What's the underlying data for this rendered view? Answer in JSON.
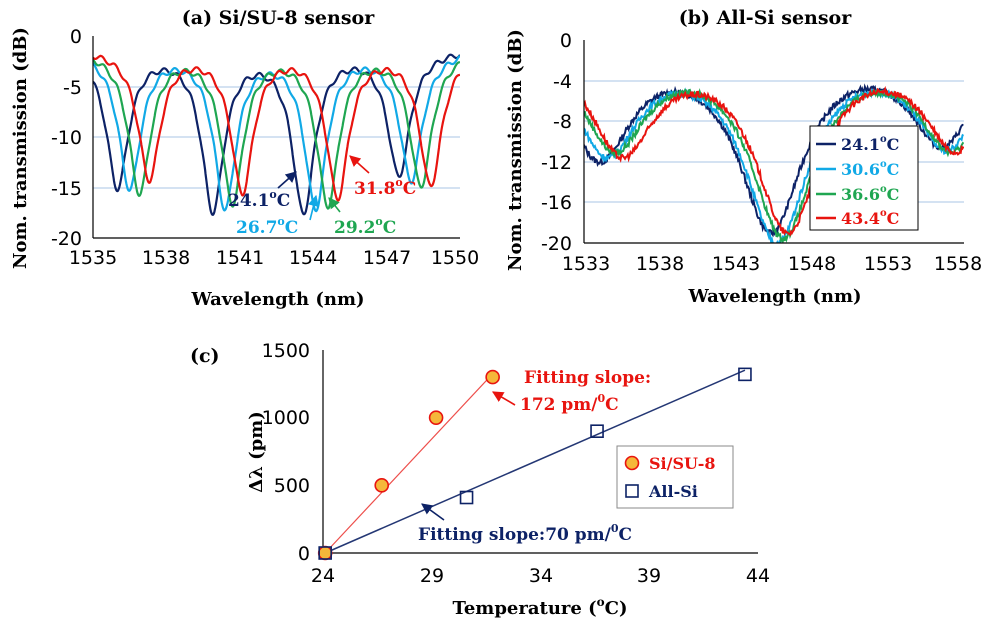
{
  "chart_data": [
    {
      "type": "line",
      "title": "(a) Si/SU-8 sensor",
      "xlabel": "Wavelength (nm)",
      "ylabel": "Nom. transmission (dB)",
      "xlim": [
        1535,
        1550
      ],
      "ylim": [
        -20,
        0
      ],
      "xticks": [
        "1535",
        "1538",
        "1541",
        "1544",
        "1547",
        "1550"
      ],
      "yticks": [
        "0",
        "-5",
        "-10",
        "-15",
        "-20"
      ],
      "grid": "horizontal",
      "series": [
        {
          "name": "24.1°C",
          "color": "#0d2266",
          "fsr": 7.6,
          "width": 0.55,
          "dips": [
            1536.0,
            1539.9,
            1543.6,
            1547.5
          ],
          "depths": [
            -14.7,
            -16.8,
            -17.0,
            -13.5
          ]
        },
        {
          "name": "26.7°C",
          "color": "#11a9e6",
          "fsr": 7.6,
          "width": 0.55,
          "dips": [
            1536.5,
            1540.4,
            1544.1,
            1548.0
          ],
          "depths": [
            -14.8,
            -16.5,
            -16.5,
            -14.0
          ]
        },
        {
          "name": "29.2°C",
          "color": "#1fa651",
          "fsr": 7.6,
          "width": 0.55,
          "dips": [
            1536.9,
            1540.7,
            1544.6,
            1548.4
          ],
          "depths": [
            -15.2,
            -16.0,
            -16.2,
            -14.5
          ]
        },
        {
          "name": "31.8°C",
          "color": "#e8140f",
          "fsr": 7.6,
          "width": 0.55,
          "dips": [
            1537.3,
            1541.1,
            1545.0,
            1548.8
          ],
          "depths": [
            -13.9,
            -15.0,
            -15.5,
            -14.5
          ]
        }
      ],
      "annotations": [
        {
          "text": "24.1",
          "sup": "o",
          "unit": "C",
          "color": "#0d2266"
        },
        {
          "text": "26.7",
          "sup": "o",
          "unit": "C",
          "color": "#11a9e6"
        },
        {
          "text": "29.2",
          "sup": "o",
          "unit": "C",
          "color": "#1fa651"
        },
        {
          "text": "31.8",
          "sup": "o",
          "unit": "C",
          "color": "#e8140f"
        }
      ]
    },
    {
      "type": "line",
      "title": "(b) All-Si sensor",
      "xlabel": "Wavelength (nm)",
      "ylabel": "Nom. transmission (dB)",
      "xlim": [
        1533,
        1558
      ],
      "ylim": [
        -20,
        0
      ],
      "xticks": [
        "1533",
        "1538",
        "1543",
        "1548",
        "1553",
        "1558"
      ],
      "yticks": [
        "0",
        "-4",
        "-8",
        "-12",
        "-16",
        "-20"
      ],
      "grid": "horizontal",
      "legend_position": "right",
      "series": [
        {
          "name": "24.1",
          "sup": "o",
          "unit": "C",
          "color": "#0d2266",
          "dips": [
            1534.0,
            1545.3,
            1556.6
          ],
          "depths": [
            -11.0,
            -18.0,
            -9.5
          ]
        },
        {
          "name": "30.6",
          "sup": "o",
          "unit": "C",
          "color": "#11a9e6",
          "dips": [
            1534.5,
            1545.7,
            1556.9
          ],
          "depths": [
            -10.5,
            -19.0,
            -9.8
          ]
        },
        {
          "name": "36.6",
          "sup": "o",
          "unit": "C",
          "color": "#1fa651",
          "dips": [
            1535.0,
            1546.1,
            1557.2
          ],
          "depths": [
            -10.0,
            -18.5,
            -10.0
          ]
        },
        {
          "name": "43.4",
          "sup": "o",
          "unit": "C",
          "color": "#e8140f",
          "dips": [
            1535.5,
            1546.4,
            1557.5
          ],
          "depths": [
            -10.5,
            -18.0,
            -10.0
          ]
        }
      ]
    },
    {
      "type": "scatter",
      "title": "(c)",
      "xlabel": "Temperature (",
      "xlabel_sup": "o",
      "xlabel_end": "C)",
      "ylabel": "Δλ (pm)",
      "xlim": [
        24,
        44
      ],
      "ylim": [
        0,
        1500
      ],
      "xticks": [
        "24",
        "29",
        "34",
        "39",
        "44"
      ],
      "yticks": [
        "0",
        "500",
        "1000",
        "1500"
      ],
      "legend_position": "right",
      "series": [
        {
          "name": "Si/SU-8",
          "marker": "circle",
          "color": "#e8140f",
          "fill": "#f5b73a",
          "x": [
            24.1,
            26.7,
            29.2,
            31.8
          ],
          "y": [
            0,
            500,
            1000,
            1300
          ],
          "fit": [
            [
              24.1,
              0
            ],
            [
              31.8,
              1324
            ]
          ]
        },
        {
          "name": "All-Si",
          "marker": "square",
          "color": "#0d2266",
          "fill": "#ffffff",
          "x": [
            24.1,
            30.6,
            36.6,
            43.4
          ],
          "y": [
            0,
            410,
            900,
            1320
          ],
          "fit": [
            [
              24.1,
              0
            ],
            [
              43.4,
              1351
            ]
          ]
        }
      ],
      "annotations": [
        {
          "text": "Fitting slope:",
          "color": "#e8140f"
        },
        {
          "text": "172 pm/",
          "sup": "0",
          "unit": "C",
          "color": "#e8140f"
        },
        {
          "text": "Fitting slope:70 pm/",
          "sup": "0",
          "unit": "C",
          "color": "#0d2266"
        }
      ]
    }
  ]
}
